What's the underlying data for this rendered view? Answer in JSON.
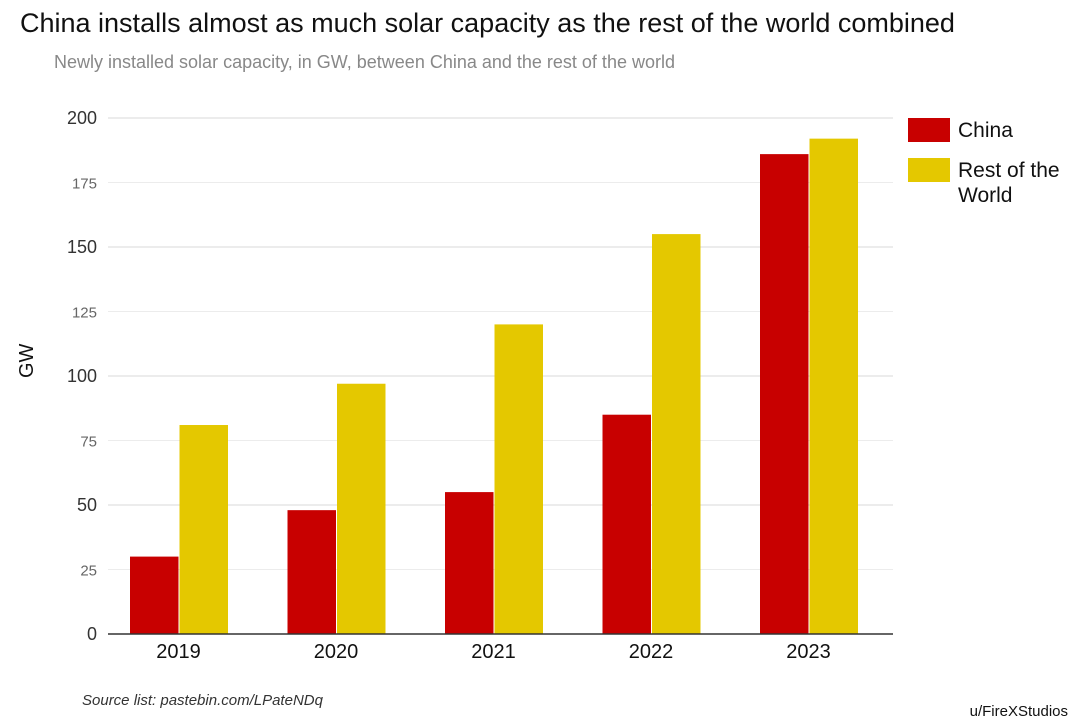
{
  "chart_data": {
    "type": "bar",
    "title": "China installs almost as much solar capacity as the rest of the world combined",
    "subtitle": "Newly installed solar capacity, in GW, between China and the rest of the world",
    "xlabel": "",
    "ylabel": "GW",
    "categories": [
      "2019",
      "2020",
      "2021",
      "2022",
      "2023"
    ],
    "ylim": [
      0,
      200
    ],
    "yticks": [
      0,
      25,
      50,
      75,
      100,
      125,
      150,
      175,
      200
    ],
    "grid": true,
    "legend_position": "right",
    "series": [
      {
        "name": "China",
        "color": "#c80000",
        "values": [
          30,
          48,
          55,
          85,
          186
        ]
      },
      {
        "name": "Rest of the World",
        "color": "#e4c800",
        "values": [
          81,
          97,
          120,
          155,
          192
        ]
      }
    ]
  },
  "footer": {
    "source": "Source list: pastebin.com/LPateNDq",
    "credit": "u/FireXStudios"
  }
}
